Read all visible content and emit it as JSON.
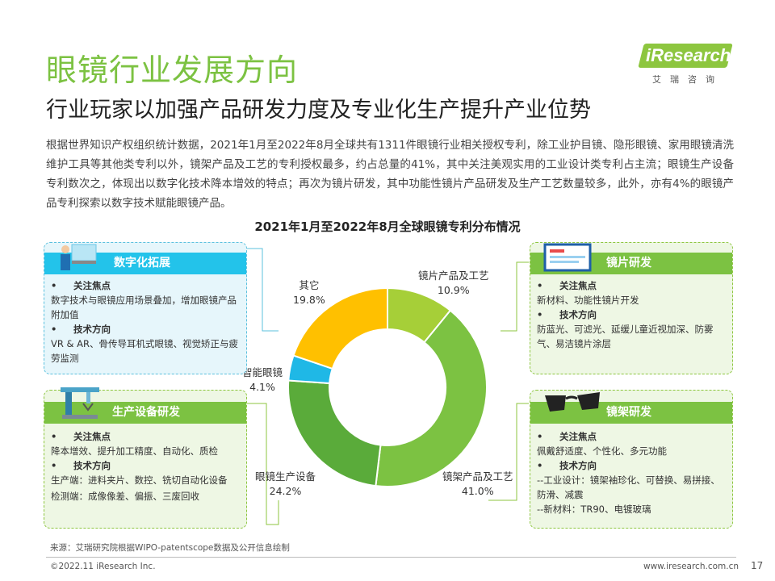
{
  "logo": {
    "brand": "iResearch",
    "sub": "艾瑞咨询"
  },
  "title": "眼镜行业发展方向",
  "subtitle": "行业玩家以加强产品研发力度及专业化生产提升产业位势",
  "body": "根据世界知识产权组织统计数据，2021年1月至2022年8月全球共有1311件眼镜行业相关授权专利，除工业护目镜、隐形眼镜、家用眼镜清洗维护工具等其他类专利以外，镜架产品及工艺的专利授权最多，约占总量的41%，其中关注美观实用的工业设计类专利占主流；眼镜生产设备专利数次之，体现出以数字化技术降本增效的特点；再次为镜片研发，其中功能性镜片产品研发及生产工艺数量较多，此外，亦有4%的眼镜产品专利探索以数字技术赋能眼镜产品。",
  "chart_data": {
    "type": "pie",
    "title": "2021年1月至2022年8月全球眼镜专利分布情况",
    "donut": true,
    "categories": [
      "镜片产品及工艺",
      "镜架产品及工艺",
      "眼镜生产设备",
      "智能眼镜",
      "其它"
    ],
    "values": [
      10.9,
      41.0,
      24.2,
      4.1,
      19.8
    ],
    "value_labels": [
      "10.9%",
      "41.0%",
      "24.2%",
      "4.1%",
      "19.8%"
    ],
    "colors": [
      "#a6cf38",
      "#7cc242",
      "#5aab3a",
      "#1fb8e6",
      "#ffc000"
    ]
  },
  "panels": {
    "digital": {
      "title": "数字化拓展",
      "focus_label": "关注焦点",
      "focus_text": "数字技术与眼镜应用场景叠加，增加眼镜产品附加值",
      "tech_label": "技术方向",
      "tech_text": "VR & AR、骨传导耳机式眼镜、视觉矫正与疲劳监测"
    },
    "equipment": {
      "title": "生产设备研发",
      "focus_label": "关注焦点",
      "focus_text": "降本增效、提升加工精度、自动化、质检",
      "tech_label": "技术方向",
      "tech_line1": "生产端：进料夹片、数控、铣切自动化设备",
      "tech_line2": "检测端：成像像差、偏振、三废回收"
    },
    "lens": {
      "title": "镜片研发",
      "focus_label": "关注焦点",
      "focus_text": "新材料、功能性镜片开发",
      "tech_label": "技术方向",
      "tech_text": "防蓝光、可滤光、延缓儿童近视加深、防雾气、易洁镜片涂层"
    },
    "frame": {
      "title": "镜架研发",
      "focus_label": "关注焦点",
      "focus_text": "佩戴舒适度、个性化、多元功能",
      "tech_label": "技术方向",
      "tech_line1": "--工业设计：镜架袖珍化、可替换、易拼接、防滑、减震",
      "tech_line2": "--新材料：TR90、电镀玻璃"
    }
  },
  "bullet": "•",
  "source": "来源：艾瑞研究院根据WIPO-patentscope数据及公开信息绘制",
  "copyright": "©2022.11 iResearch Inc.",
  "website": "www.iresearch.com.cn",
  "page": "17"
}
